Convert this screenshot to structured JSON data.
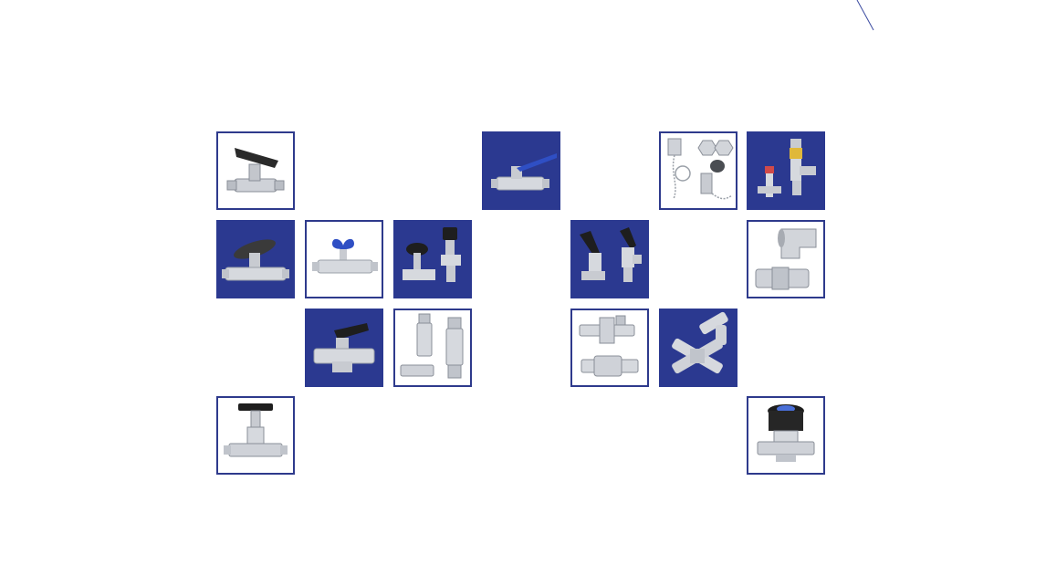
{
  "colors": {
    "tile_dark_bg": "#2b3990",
    "tile_border": "#2e3a8c",
    "page_bg": "#ffffff",
    "steel": "#c9ccd2",
    "handle_black": "#2a2a2a",
    "handle_blue": "#2f4fc4"
  },
  "tiles": [
    {
      "icon": "ball-valve-black-handle-icon",
      "theme": "light"
    },
    {
      "icon": "ball-valve-blue-handle-icon",
      "theme": "dark"
    },
    {
      "icon": "caps-and-plugs-with-chain-icon",
      "theme": "light"
    },
    {
      "icon": "relief-valve-icon",
      "theme": "dark"
    },
    {
      "icon": "ball-valve-oval-handle-icon",
      "theme": "dark"
    },
    {
      "icon": "butterfly-handle-valve-icon",
      "theme": "light"
    },
    {
      "icon": "needle-valves-knob-icon",
      "theme": "dark"
    },
    {
      "icon": "angle-valves-lever-icon",
      "theme": "dark"
    },
    {
      "icon": "elbow-fitting-icon",
      "theme": "light"
    },
    {
      "icon": "compact-ball-valve-icon",
      "theme": "dark"
    },
    {
      "icon": "inline-check-valves-icon",
      "theme": "light"
    },
    {
      "icon": "filter-and-tee-fittings-icon",
      "theme": "light"
    },
    {
      "icon": "cross-and-elbow-fittings-icon",
      "theme": "dark"
    },
    {
      "icon": "needle-valve-t-bar-icon",
      "theme": "light"
    },
    {
      "icon": "diaphragm-valve-icon",
      "theme": "light"
    }
  ]
}
